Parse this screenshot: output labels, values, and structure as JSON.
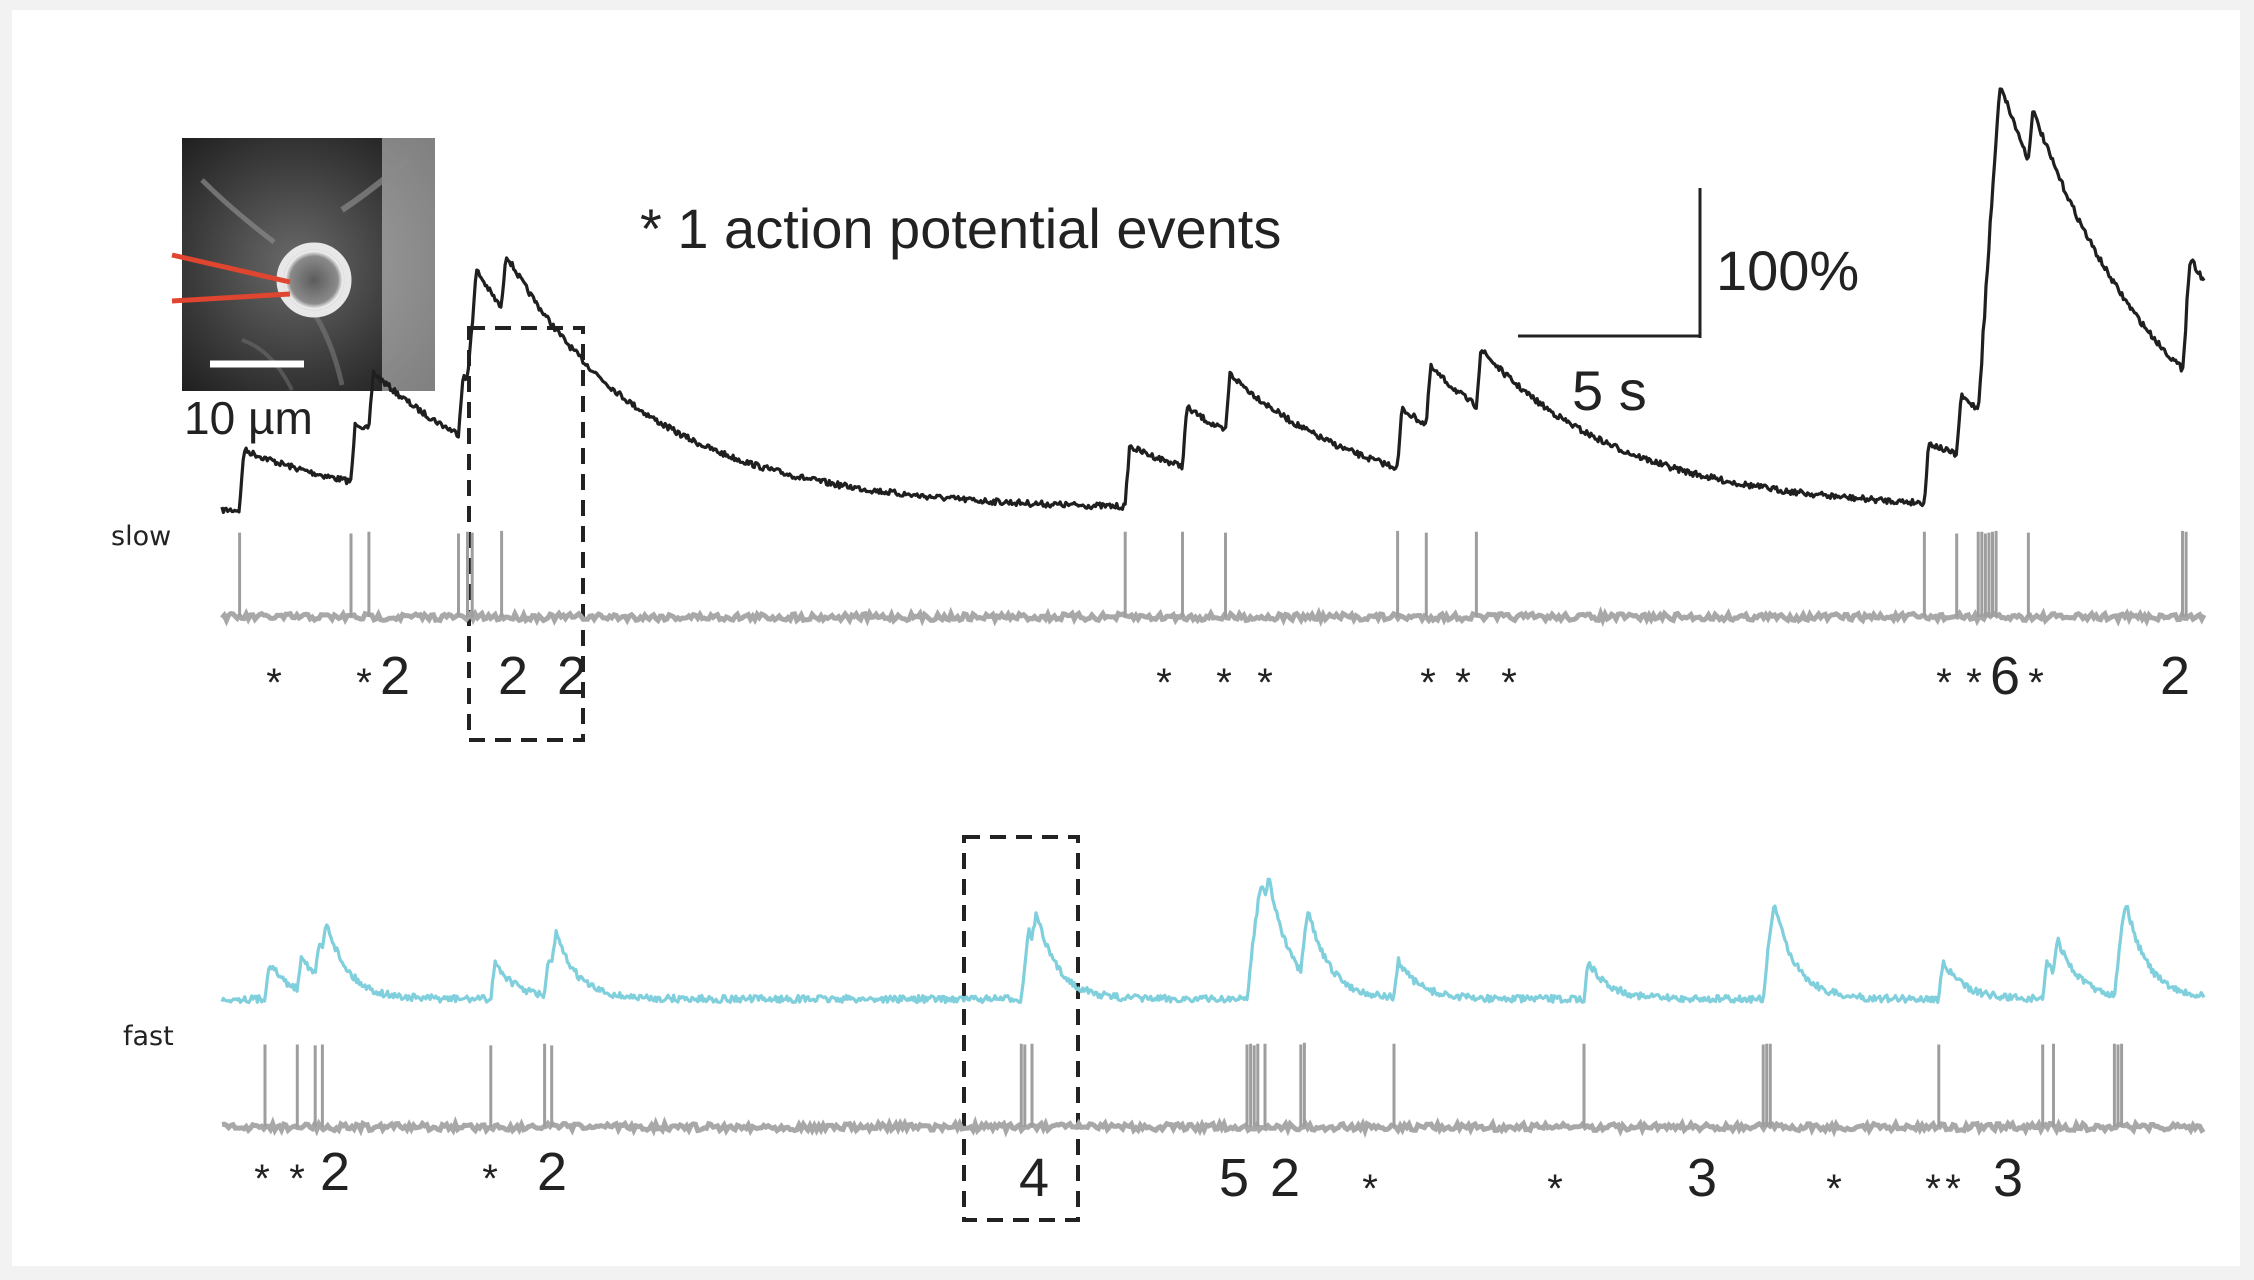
{
  "legend_text": "* 1 action potential events",
  "scale_bar": {
    "vertical_label": "100%",
    "horizontal_label": "5 s"
  },
  "inset": {
    "scale_label": "10 µm"
  },
  "traces": [
    {
      "id": "slow",
      "label": "slow",
      "color": "#1f1f1f",
      "baseline": 500,
      "amp": 62,
      "tau": 4,
      "spikes": [
        [
          0.49,
          0.97
        ],
        [
          3.6,
          0.96
        ],
        [
          4.1,
          0.98
        ],
        [
          6.6,
          0.96
        ],
        [
          6.85,
          0.98
        ],
        [
          6.98,
          0.97
        ],
        [
          7.8,
          0.99
        ],
        [
          25.2,
          0.98
        ],
        [
          26.8,
          0.98
        ],
        [
          28.0,
          0.97
        ],
        [
          32.8,
          0.99
        ],
        [
          33.6,
          0.97
        ],
        [
          35.0,
          0.98
        ],
        [
          47.5,
          0.98
        ],
        [
          48.4,
          0.96
        ],
        [
          49.0,
          0.98
        ],
        [
          49.1,
          0.98
        ],
        [
          49.2,
          0.96
        ],
        [
          49.3,
          0.97
        ],
        [
          49.4,
          0.98
        ],
        [
          49.5,
          0.99
        ],
        [
          50.4,
          0.97
        ],
        [
          54.7,
          0.99
        ],
        [
          54.8,
          0.98
        ]
      ],
      "event_labels": [
        "*",
        "*",
        "2",
        "2",
        "2",
        "*",
        "*",
        "*",
        "*",
        "*",
        "*",
        "*",
        "*",
        "6",
        "*",
        "2"
      ],
      "highlight_label": "2 2"
    },
    {
      "id": "fast",
      "label": "fast",
      "color": "#7fcfdc",
      "baseline": 989,
      "amp": 45,
      "tau": 0.6,
      "spikes": [
        [
          1.2,
          0.97
        ],
        [
          2.1,
          0.97
        ],
        [
          2.6,
          0.96
        ],
        [
          2.8,
          0.97
        ],
        [
          7.5,
          0.96
        ],
        [
          9.0,
          0.98
        ],
        [
          9.2,
          0.96
        ],
        [
          22.3,
          0.98
        ],
        [
          22.4,
          0.97
        ],
        [
          22.6,
          0.98
        ],
        [
          28.6,
          0.97
        ],
        [
          28.7,
          0.98
        ],
        [
          28.8,
          0.96
        ],
        [
          28.9,
          0.98
        ],
        [
          29.1,
          0.98
        ],
        [
          30.1,
          0.97
        ],
        [
          30.2,
          0.99
        ],
        [
          32.7,
          0.98
        ],
        [
          38.0,
          0.98
        ],
        [
          43.0,
          0.97
        ],
        [
          43.1,
          0.98
        ],
        [
          43.2,
          0.98
        ],
        [
          47.9,
          0.97
        ],
        [
          50.8,
          0.97
        ],
        [
          51.1,
          0.98
        ],
        [
          52.8,
          0.98
        ],
        [
          52.9,
          0.97
        ],
        [
          53.0,
          0.98
        ]
      ],
      "event_labels": [
        "*",
        "*",
        "2",
        "*",
        "2",
        "4",
        "5",
        "2",
        "*",
        "*",
        "3",
        "*",
        "*",
        "*",
        "3"
      ],
      "highlight_label": "4"
    }
  ]
}
